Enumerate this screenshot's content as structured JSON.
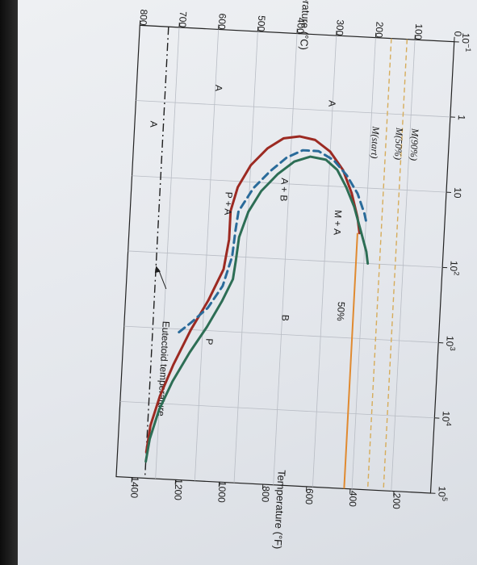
{
  "chart_data": {
    "type": "line",
    "title": "",
    "ylabel_left": "Temperature (°C)",
    "ylabel_right": "Temperature (°F)",
    "xlabel": "",
    "xscale": "log",
    "xlim": [
      0.1,
      100000
    ],
    "ylim": [
      0,
      800
    ],
    "x_ticks": [
      {
        "value": 0.1,
        "base": "10",
        "sup": "−1"
      },
      {
        "value": 1,
        "base": "1",
        "sup": ""
      },
      {
        "value": 10,
        "base": "10",
        "sup": ""
      },
      {
        "value": 100,
        "base": "10",
        "sup": "2"
      },
      {
        "value": 1000,
        "base": "10",
        "sup": "3"
      },
      {
        "value": 10000,
        "base": "10",
        "sup": "4"
      },
      {
        "value": 100000,
        "base": "10",
        "sup": "5"
      }
    ],
    "y_ticks_c": [
      "0",
      "100",
      "200",
      "300",
      "400",
      "500",
      "600",
      "700",
      "800"
    ],
    "y_ticks_f": [
      "200",
      "400",
      "600",
      "800",
      "1000",
      "1200",
      "1400"
    ],
    "grid": true,
    "series": [
      {
        "color": "#9c2a22",
        "dash": "solid",
        "points": [
          [
            45000,
            727
          ],
          [
            20000,
            720
          ],
          [
            8000,
            700
          ],
          [
            3000,
            670
          ],
          [
            1000,
            630
          ],
          [
            400,
            590
          ],
          [
            150,
            555
          ],
          [
            60,
            545
          ],
          [
            25,
            545
          ],
          [
            12,
            530
          ],
          [
            6,
            500
          ],
          [
            3.5,
            460
          ],
          [
            2.5,
            420
          ],
          [
            2.3,
            380
          ],
          [
            2.5,
            340
          ],
          [
            3.5,
            300
          ],
          [
            6,
            265
          ],
          [
            12,
            240
          ],
          [
            25,
            222
          ],
          [
            40,
            215
          ]
        ]
      },
      {
        "color": "#2a6b9a",
        "dash": "dashed",
        "points": [
          [
            1100,
            660
          ],
          [
            800,
            630
          ],
          [
            500,
            590
          ],
          [
            250,
            555
          ],
          [
            100,
            535
          ],
          [
            45,
            530
          ],
          [
            25,
            525
          ],
          [
            12,
            490
          ],
          [
            7,
            450
          ],
          [
            4.5,
            410
          ],
          [
            3.5,
            370
          ],
          [
            3.5,
            330
          ],
          [
            4.5,
            290
          ],
          [
            7,
            255
          ],
          [
            12,
            225
          ],
          [
            22,
            205
          ],
          [
            30,
            198
          ]
        ]
      },
      {
        "color": "#2d6e55",
        "dash": "solid",
        "points": [
          [
            60000,
            727
          ],
          [
            30000,
            720
          ],
          [
            12000,
            700
          ],
          [
            5000,
            670
          ],
          [
            2000,
            630
          ],
          [
            900,
            590
          ],
          [
            400,
            555
          ],
          [
            200,
            530
          ],
          [
            110,
            525
          ],
          [
            55,
            520
          ],
          [
            25,
            500
          ],
          [
            13,
            470
          ],
          [
            7.5,
            430
          ],
          [
            5,
            390
          ],
          [
            4.2,
            350
          ],
          [
            4.5,
            310
          ],
          [
            6,
            280
          ],
          [
            10,
            255
          ],
          [
            18,
            232
          ],
          [
            40,
            210
          ],
          [
            70,
            195
          ],
          [
            100,
            190
          ]
        ]
      }
    ],
    "reference_lines": [
      {
        "label": "Eutectoid temperature",
        "celsius": 727,
        "color": "#1f1f1f",
        "dash": "dashdot"
      },
      {
        "label": "M(start)",
        "celsius": 220,
        "color": "#e08a30",
        "dash": "solid"
      },
      {
        "label": "M(50%)",
        "celsius": 160,
        "color": "#d6ac5a",
        "dash": "dashed"
      },
      {
        "label": "M(90%)",
        "celsius": 120,
        "color": "#d6ac5a",
        "dash": "dashed"
      }
    ],
    "annotations": [
      {
        "text": "A",
        "x": 2,
        "y": 760
      },
      {
        "text": "A",
        "x": 0.6,
        "y": 600
      },
      {
        "text": "A",
        "x": 0.8,
        "y": 310
      },
      {
        "text": "P",
        "x": 1400,
        "y": 590
      },
      {
        "text": "B",
        "x": 600,
        "y": 400
      },
      {
        "text": "M + A",
        "x": 30,
        "y": 280
      },
      {
        "text": "50%",
        "x": 450,
        "y": 260
      },
      {
        "text": "P + A",
        "x": 20,
        "y": 560
      },
      {
        "text": "A + B",
        "x": 12,
        "y": 420
      }
    ]
  }
}
